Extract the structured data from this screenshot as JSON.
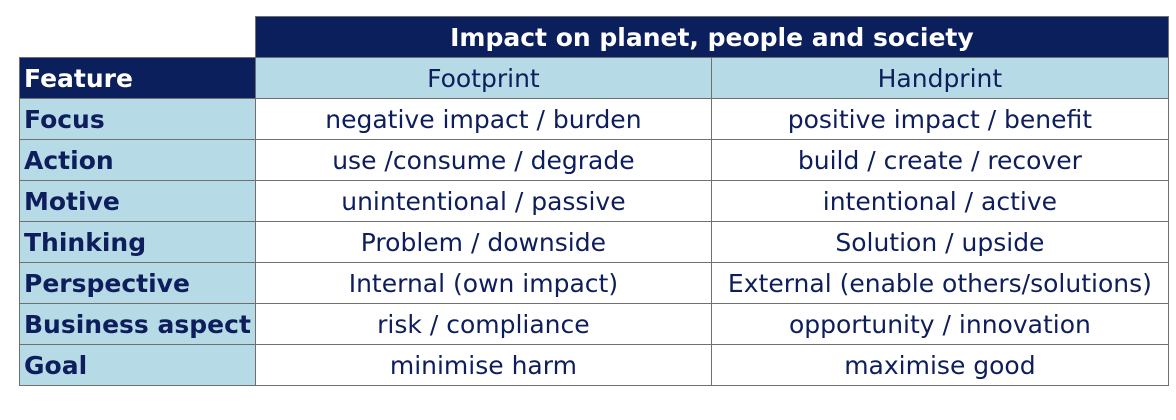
{
  "table": {
    "title": "Impact on planet, people and society",
    "feature_header": "Feature",
    "columns": [
      "Footprint",
      "Handprint"
    ],
    "rows": [
      {
        "label": "Focus",
        "footprint": "negative impact / burden",
        "handprint": "positive impact / benefit"
      },
      {
        "label": "Action",
        "footprint": "use /consume / degrade",
        "handprint": "build / create / recover"
      },
      {
        "label": "Motive",
        "footprint": "unintentional / passive",
        "handprint": "intentional / active"
      },
      {
        "label": "Thinking",
        "footprint": "Problem / downside",
        "handprint": "Solution / upside"
      },
      {
        "label": "Perspective",
        "footprint": "Internal (own impact)",
        "handprint": "External (enable others/solutions)"
      },
      {
        "label": "Business aspect",
        "footprint": "risk / compliance",
        "handprint": "opportunity / innovation"
      },
      {
        "label": "Goal",
        "footprint": "minimise harm",
        "handprint": "maximise good"
      }
    ]
  }
}
